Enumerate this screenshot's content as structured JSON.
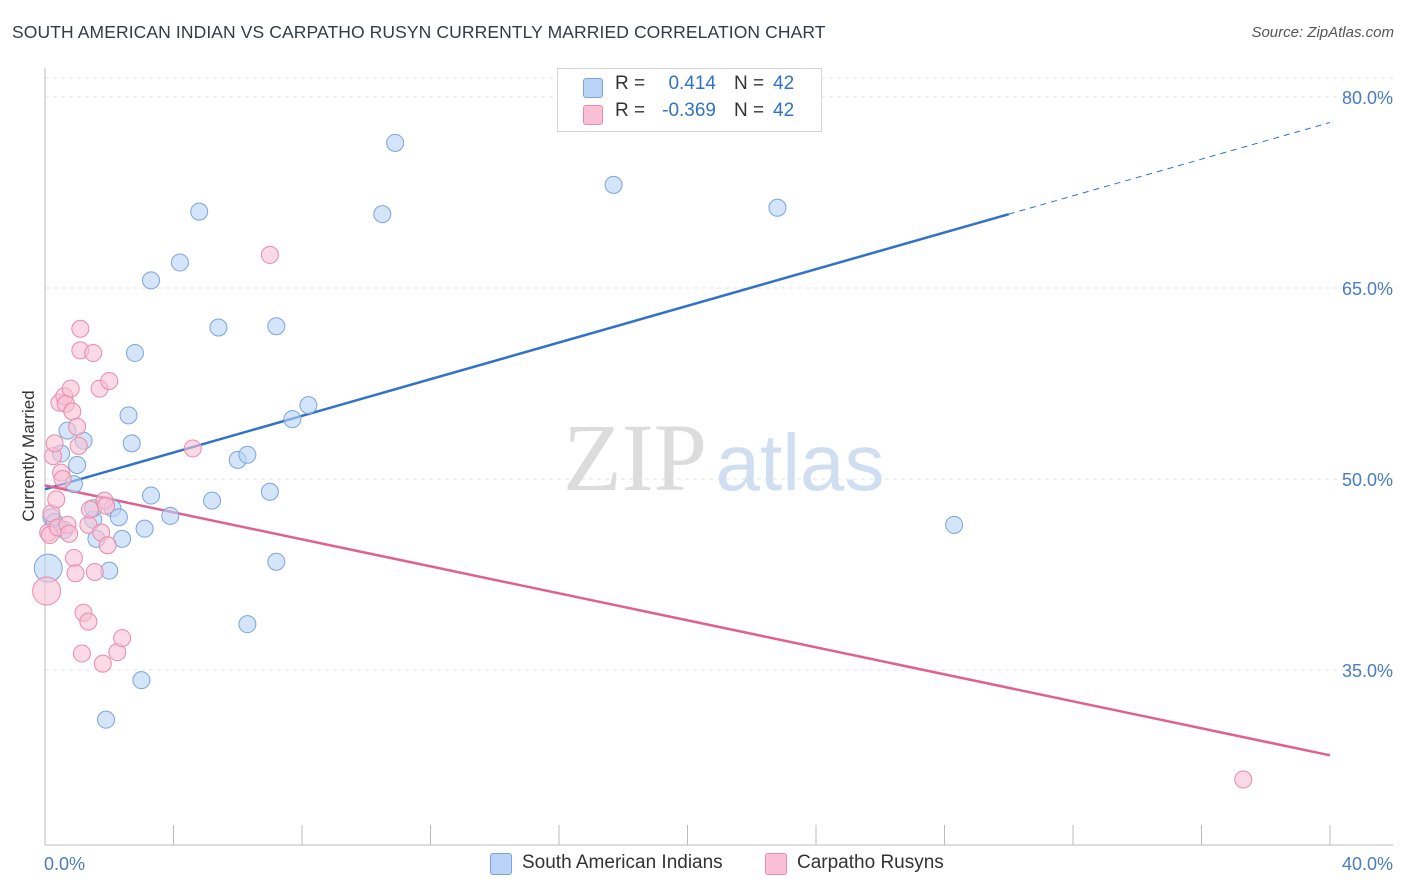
{
  "title": "SOUTH AMERICAN INDIAN VS CARPATHO RUSYN CURRENTLY MARRIED CORRELATION CHART",
  "source": "Source: ZipAtlas.com",
  "watermark": {
    "zip": "ZIP",
    "atlas": "atlas"
  },
  "legend": {
    "r_label": "R =",
    "n_label": "N =",
    "series": [
      {
        "r": "0.414",
        "n": "42"
      },
      {
        "r": "-0.369",
        "n": "42"
      }
    ]
  },
  "colors": {
    "blue_fill": "#b8d3f5",
    "blue_stroke": "#7ba4dc",
    "blue_line": "#2f72c8",
    "pink_fill": "#f9c0d3",
    "pink_stroke": "#e98aa9",
    "pink_line": "#e0608e",
    "axis_text": "#4a7cc4"
  },
  "chart_data": {
    "type": "scatter",
    "title": "SOUTH AMERICAN INDIAN VS CARPATHO RUSYN CURRENTLY MARRIED CORRELATION CHART",
    "xlabel": "",
    "ylabel": "Currently Married",
    "xlim": [
      0,
      40
    ],
    "ylim": [
      20,
      83
    ],
    "x_tick_labels": [
      "0.0%",
      "40.0%"
    ],
    "y_ticks": [
      35,
      50,
      65,
      80
    ],
    "y_tick_labels": [
      "35.0%",
      "50.0%",
      "65.0%",
      "80.0%"
    ],
    "grid": true,
    "series": [
      {
        "name": "South American Indians",
        "r": 0.414,
        "n": 42,
        "trend": {
          "x0": 0,
          "y0": 49.2,
          "x1": 30,
          "y1": 70.8,
          "dashed_to_x": 40,
          "dashed_to_y": 78.0
        },
        "points": [
          [
            0.1,
            43.0
          ],
          [
            0.2,
            47.0
          ],
          [
            0.3,
            46.6
          ],
          [
            0.5,
            52.0
          ],
          [
            0.6,
            46.0
          ],
          [
            0.7,
            53.8
          ],
          [
            0.9,
            49.6
          ],
          [
            1.0,
            51.1
          ],
          [
            1.2,
            53.0
          ],
          [
            1.5,
            46.8
          ],
          [
            1.6,
            45.3
          ],
          [
            1.5,
            47.7
          ],
          [
            2.1,
            47.7
          ],
          [
            2.0,
            42.8
          ],
          [
            2.3,
            47.0
          ],
          [
            2.4,
            45.3
          ],
          [
            2.6,
            55.0
          ],
          [
            2.7,
            52.8
          ],
          [
            2.8,
            59.9
          ],
          [
            3.0,
            34.2
          ],
          [
            3.1,
            46.1
          ],
          [
            3.3,
            65.6
          ],
          [
            3.3,
            48.7
          ],
          [
            3.9,
            47.1
          ],
          [
            4.2,
            67.0
          ],
          [
            4.8,
            71.0
          ],
          [
            5.2,
            48.3
          ],
          [
            5.4,
            61.9
          ],
          [
            6.0,
            51.5
          ],
          [
            6.3,
            51.9
          ],
          [
            6.3,
            38.6
          ],
          [
            7.0,
            49.0
          ],
          [
            7.2,
            43.5
          ],
          [
            7.2,
            62.0
          ],
          [
            7.7,
            54.7
          ],
          [
            8.2,
            55.8
          ],
          [
            10.5,
            70.8
          ],
          [
            10.9,
            76.4
          ],
          [
            1.9,
            31.1
          ],
          [
            17.7,
            73.1
          ],
          [
            22.8,
            71.3
          ],
          [
            28.3,
            46.4
          ]
        ]
      },
      {
        "name": "Carpatho Rusyns",
        "r": -0.369,
        "n": 42,
        "trend": {
          "x0": 0,
          "y0": 49.5,
          "x1": 40,
          "y1": 28.3
        },
        "points": [
          [
            0.05,
            41.2
          ],
          [
            0.1,
            45.8
          ],
          [
            0.15,
            45.6
          ],
          [
            0.2,
            47.3
          ],
          [
            0.25,
            51.8
          ],
          [
            0.3,
            52.8
          ],
          [
            0.35,
            48.4
          ],
          [
            0.4,
            46.2
          ],
          [
            0.45,
            56.0
          ],
          [
            0.5,
            50.5
          ],
          [
            0.55,
            50.0
          ],
          [
            0.6,
            56.5
          ],
          [
            0.65,
            55.9
          ],
          [
            0.7,
            46.4
          ],
          [
            0.75,
            45.7
          ],
          [
            0.8,
            57.1
          ],
          [
            0.85,
            55.3
          ],
          [
            0.9,
            43.8
          ],
          [
            0.95,
            42.6
          ],
          [
            1.0,
            54.1
          ],
          [
            1.05,
            52.6
          ],
          [
            1.1,
            61.8
          ],
          [
            1.1,
            60.1
          ],
          [
            1.15,
            36.3
          ],
          [
            1.2,
            39.5
          ],
          [
            1.35,
            46.4
          ],
          [
            1.4,
            47.6
          ],
          [
            1.5,
            59.9
          ],
          [
            1.55,
            42.7
          ],
          [
            1.7,
            57.1
          ],
          [
            1.75,
            45.8
          ],
          [
            1.8,
            35.5
          ],
          [
            1.85,
            48.3
          ],
          [
            1.9,
            47.9
          ],
          [
            1.95,
            44.8
          ],
          [
            2.0,
            57.7
          ],
          [
            2.25,
            36.4
          ],
          [
            2.4,
            37.5
          ],
          [
            1.35,
            38.8
          ],
          [
            4.6,
            52.4
          ],
          [
            7.0,
            67.6
          ],
          [
            37.3,
            26.4
          ]
        ]
      }
    ]
  }
}
